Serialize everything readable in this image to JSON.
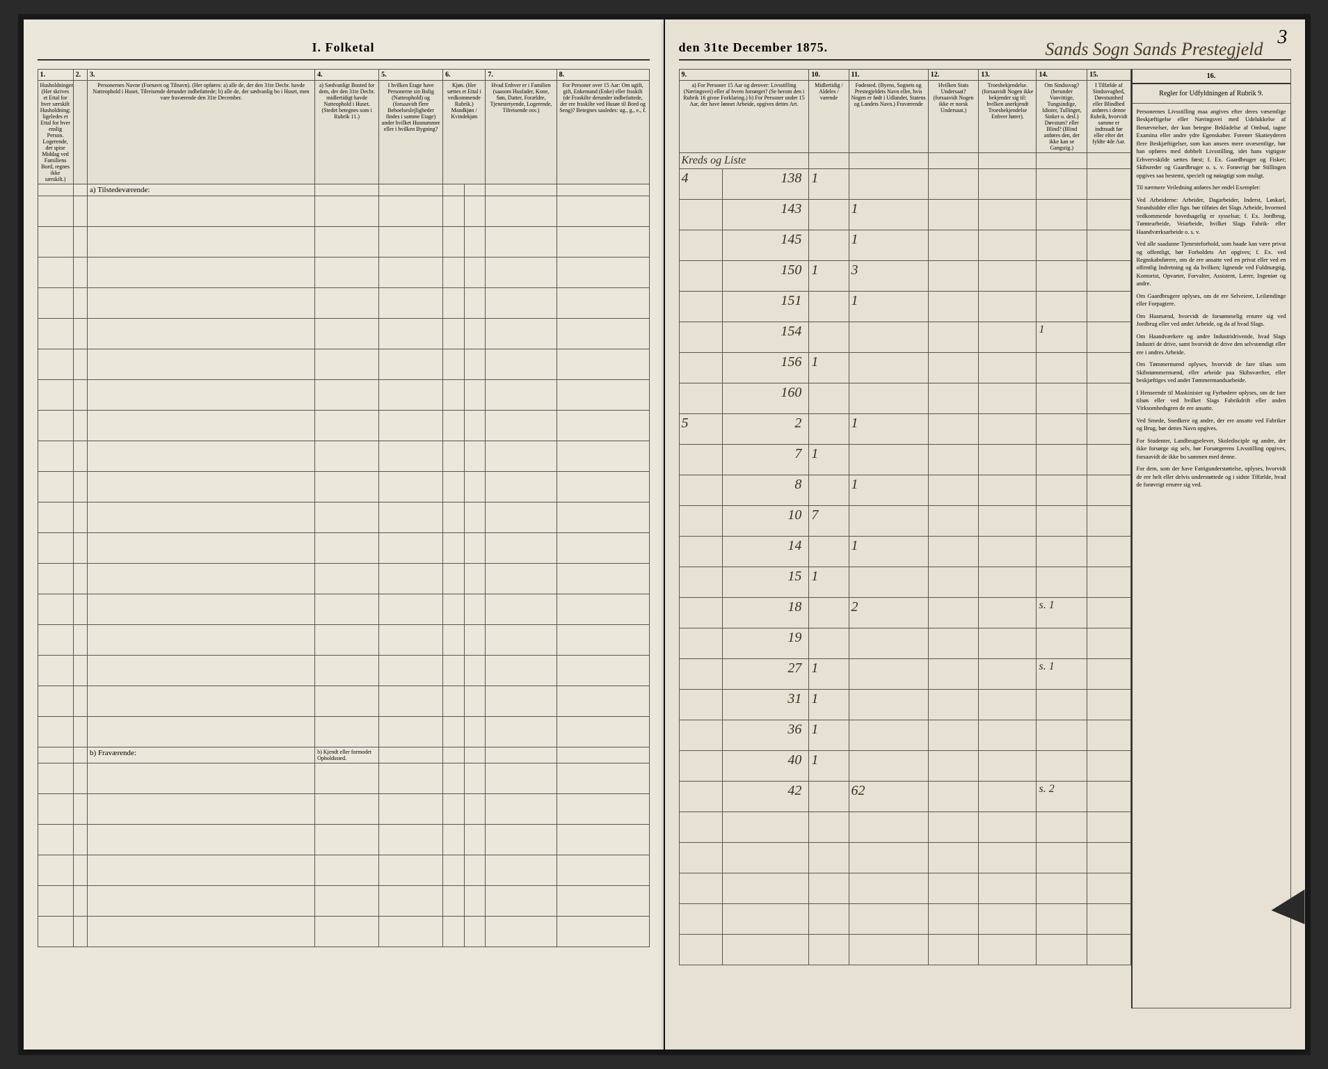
{
  "document": {
    "title_left": "I. Folketal",
    "title_right": "den 31te December 1875.",
    "handwritten_header": "Sands Sogn Sands Prestegjeld",
    "page_number": "3",
    "background_color": "#e8e4d8",
    "ink_color": "#3a2f20",
    "border_color": "#555555"
  },
  "left_columns": {
    "numbers": [
      "1.",
      "2.",
      "3.",
      "4.",
      "5.",
      "6.",
      "7.",
      "8."
    ],
    "headers": [
      "Husholdninger. (Her skrives et Ettal for hver særskilt Husholdning; ligeledes et Ettal for hver enslig Person. Logerende, der spise Middag ved Familiens Bord, regnes ikke særskilt.)",
      "",
      "Personernes Navne (Fornavn og Tilnavn). (Her opføres: a) alle de, der den 31te Decbr. havde Natteophold i Huset, Tilreisende derunder indbefattede; b) alle de, der sædvanlig bo i Huset, men vare fraværende den 31te December.",
      "a) Sædvanligt Bosted for dem, der den 31te Decbr. midlertidigt havde Natteophold i Huset. (Stedet betegnes som i Rubrik 11.)",
      "I hvilken Etage have Personerne sin Bolig (Natteophold) og (forsaavidt flere Beboelseslejligheder findes i samme Etage) under hvilket Husnummer eller i hvilken Bygning?",
      "Kjøn. (Her sættes et Ettal i vedkommende Rubrik.) Mandkjøn / Kvindekjøn",
      "Hvad Enhver er i Familien (saasom Husfader, Kone, Søn, Datter, Forældre, Tjenestetyende, Logerende, Tilreisende osv.)",
      "For Personer over 15 Aar: Om ugift, gift, Enkemand (Enke) eller fraskilt (de Fraskilte derunder indbefattede, der ere fraskilte ved Husøe til Bord og Seng)? Betegnes saaledes: ug., g., e., f."
    ],
    "section_a": "a) Tilstedeværende:",
    "section_b": "b) Fraværende:",
    "section_b_col4": "b) Kjendt eller formodet Opholdssted.",
    "widths": [
      50,
      20,
      320,
      90,
      90,
      60,
      100,
      130
    ]
  },
  "right_columns": {
    "numbers": [
      "9.",
      "10.",
      "11.",
      "12.",
      "13.",
      "14.",
      "15.",
      "16."
    ],
    "headers": [
      "a) For Personer 15 Aar og derover: Livsstilling (Næringsvei) eller af hvem forsørget? (Se herom den i Rubrik 16 givne Forklaring.) b) For Personer under 15 Aar, der have lønnet Arbeide, opgives dettes Art.",
      "Midlertidig / Aldeles / varende",
      "Fødested. (Byens, Sognets og Prestegjeldets Navn eller, hvis Nogen er født i Udlandet, Statens og Landets Navn.) Fraværende",
      "Hvilken Stats Undersaat? (forsaavidt Nogen ikke er norsk Undersaat.)",
      "Troesbekjendelse. (forsaavidt Nogen ikke bekjender sig til: hvilken anerkjendt Troesbekjendelse Enhver hører).",
      "Om Sindssvag? (herunder Vanvittige, Tungsindige, Idioter, Tullinger, Sinker o. desl.) Døvstum? eller Blind? (Blind anføres den, der ikke kan se Gangstig.)",
      "I Tilfælde af Sindssvaghed, Døvstumhed eller Blindhed anføres i denne Rubrik, hvorvidt samme er indtraadt før eller efter det fyldte 4de Aar.",
      "Regler for Udfyldningen af Rubrik 9."
    ],
    "hw_header_9": "Kreds og Liste",
    "widths": [
      180,
      55,
      110,
      70,
      80,
      70,
      60,
      230
    ]
  },
  "data_rows": [
    {
      "c9a": "4",
      "c9b": "138",
      "c10": "1",
      "c11": "",
      "c14": ""
    },
    {
      "c9a": "",
      "c9b": "143",
      "c10": "",
      "c11": "1",
      "c14": ""
    },
    {
      "c9a": "",
      "c9b": "145",
      "c10": "",
      "c11": "1",
      "c14": ""
    },
    {
      "c9a": "",
      "c9b": "150",
      "c10": "1",
      "c11": "3",
      "c14": ""
    },
    {
      "c9a": "",
      "c9b": "151",
      "c10": "",
      "c11": "1",
      "c14": ""
    },
    {
      "c9a": "",
      "c9b": "154",
      "c10": "",
      "c11": "",
      "c14": "1"
    },
    {
      "c9a": "",
      "c9b": "156",
      "c10": "1",
      "c11": "",
      "c14": ""
    },
    {
      "c9a": "",
      "c9b": "160",
      "c10": "",
      "c11": "",
      "c14": ""
    },
    {
      "c9a": "5",
      "c9b": "2",
      "c10": "",
      "c11": "1",
      "c14": ""
    },
    {
      "c9a": "",
      "c9b": "7",
      "c10": "1",
      "c11": "",
      "c14": ""
    },
    {
      "c9a": "",
      "c9b": "8",
      "c10": "",
      "c11": "1",
      "c14": ""
    },
    {
      "c9a": "",
      "c9b": "10",
      "c10": "7",
      "c11": "",
      "c14": ""
    },
    {
      "c9a": "",
      "c9b": "14",
      "c10": "",
      "c11": "1",
      "c14": ""
    },
    {
      "c9a": "",
      "c9b": "15",
      "c10": "1",
      "c11": "",
      "c14": ""
    },
    {
      "c9a": "",
      "c9b": "18",
      "c10": "",
      "c11": "2",
      "c14": "s. 1"
    },
    {
      "c9a": "",
      "c9b": "19",
      "c10": "",
      "c11": "",
      "c14": ""
    },
    {
      "c9a": "",
      "c9b": "27",
      "c10": "1",
      "c11": "",
      "c14": "s. 1"
    },
    {
      "c9a": "",
      "c9b": "31",
      "c10": "1",
      "c11": "",
      "c14": ""
    },
    {
      "c9a": "",
      "c9b": "36",
      "c10": "1",
      "c11": "",
      "c14": ""
    },
    {
      "c9a": "",
      "c9b": "40",
      "c10": "1",
      "c11": "",
      "c14": ""
    },
    {
      "c9a": "",
      "c9b": "42",
      "c10": "",
      "c11": "62",
      "c14": "s. 2"
    }
  ],
  "rules_text": [
    "Personernes Livsstilling maa angives efter deres væsentlige Beskjæftigelse eller Næringsvei med Udelukkelse af Benævnelser, der kun betegne Bekladelse af Ombud, tagne Examina eller andre ydre Egenskaber. Forener Skatteyderen flere Beskjæftigelser, som kan ansees mere uvæsentlige, bør han opføres med dobbelt Livsstilling, idet hans vigtigste Erhvervskilde sættes først; f. Ex. Gaardbruger og Fisker; Skibsreder og Gaardbruger o. s. v. Forøvrigt bør Stillingen opgives saa bestemt, specielt og nøiagtigt som muligt.",
    "Til nærmere Veiledning anføres her endel Exempler:",
    "Ved Arbeiderne: Arbeider, Dagarbeider, Inderst, Løskarl, Strandsidder eller lign. bør tilføies det Slags Arbeide, hvormed vedkommende hovedsagelig er sysselsat; f. Ex. Jordbrug, Tømtearbeide, Veiarbeide, hvilket Slags Fabrik- eller Haandværksarbeide o. s. v.",
    "Ved alle saadanne Tjenesteforhold, som baade kan være privat og offentligt, bør Forholdets Art opgives; f. Ex. ved Regnskabsførere, om de ere ansatte ved en privat eller ved en offentlig Indretning og da hvilken; lignende ved Fuldmægtig, Kontorist, Opvarter, Forvalter, Assistent, Lærer, Ingeniør og andre.",
    "Om Gaardbrugere oplyses, om de ere Selveiere, Leilændinge eller Forpagtere.",
    "Om Husmænd, hvorvidt de forsømmelig ernære sig ved Jordbrug eller ved andet Arbeide, og da af hvad Slags.",
    "Om Haandværkere og andre Industridrivende, hvad Slags Industri de drive, samt hvorvidt de drive den selvstændigt eller ere i andres Arbeide.",
    "Om Tømmermænd oplyses, hvorvidt de fare tilsøs som Skibstømmermænd, eller arbeide paa Skibsværfter, eller beskjæftiges ved andet Tømmermandsarbeide.",
    "I Henseende til Maskinister og Fyrbødere oplyses, om de fare tilsøs eller ved hvilket Slags Fabrikdrift eller anden Virksomhedsgren de ere ansatte.",
    "Ved Smede, Snedkere og andre, der ere ansatte ved Fabriker og Brug, bør dettes Navn opgives.",
    "For Studenter, Landbrugselever, Skoledisciple og andre, der ikke forsørge sig selv, bør Forsørgerens Livsstilling opgives, forsaavidt de ikke bo sammen med denne.",
    "For dem, som der have Fattigunderstøttelse, oplyses, hvorvidt de ere helt eller delvis understøttede og i sidste Tilfælde, hvad de forøvrigt ernære sig ved."
  ]
}
